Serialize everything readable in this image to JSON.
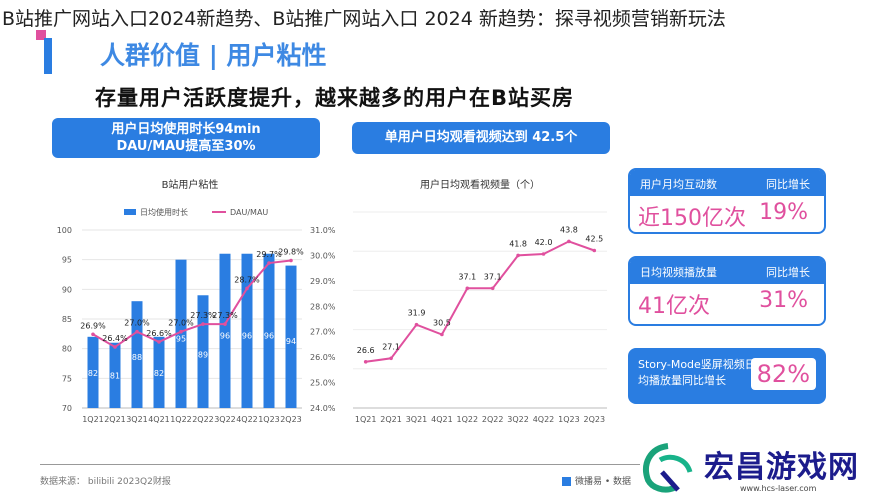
{
  "page_title": "B站推广网站入口2024新趋势、B站推广网站入口 2024 新趋势：探寻视频营销新玩法",
  "section_heading": "人群价值 | 用户粘性",
  "headline": "存量用户活跃度提升，越来越多的用户在B站买房",
  "banner1": {
    "line1": "用户日均使用时长94min",
    "line2": "DAU/MAU提高至30%"
  },
  "banner2": {
    "text": "单用户日均观看视频达到 42.5个"
  },
  "cards": [
    {
      "label1": "用户月均互动数",
      "label2": "同比增长",
      "value1": "近150亿次",
      "value2": "19%"
    },
    {
      "label1": "日均视频播放量",
      "label2": "同比增长",
      "value1": "41亿次",
      "value2": "31%"
    }
  ],
  "card3": {
    "label": "Story-Mode竖屏视频日均播放量同比增长",
    "value": "82%"
  },
  "footer": {
    "source": "数据来源： bilibili  2023Q2财报",
    "legend": "微播易 • 数据"
  },
  "watermark": {
    "text": "宏昌游戏网",
    "url": "www.hcs-laser.com"
  },
  "colors": {
    "accent": "#2a7de1",
    "pink": "#e0509e"
  },
  "chart_data": [
    {
      "type": "bar",
      "title": "B站用户粘性",
      "categories": [
        "1Q21",
        "2Q21",
        "3Q21",
        "4Q21",
        "1Q22",
        "2Q22",
        "3Q22",
        "4Q22",
        "1Q23",
        "2Q23"
      ],
      "series": [
        {
          "name": "日均使用时长",
          "type": "bar",
          "axis": "left",
          "values": [
            82,
            81,
            88,
            82,
            95,
            89,
            96,
            96,
            96,
            94
          ]
        },
        {
          "name": "DAU/MAU",
          "type": "line",
          "axis": "right",
          "values": [
            26.9,
            26.4,
            27.0,
            26.6,
            27.0,
            27.3,
            27.3,
            28.7,
            29.7,
            29.8
          ],
          "labels": [
            "26.9%",
            "26.4%",
            "27.0%",
            "26.6%",
            "27.0%",
            "27.3%",
            "27.3%",
            "28.7%",
            "29.7%",
            "29.8%"
          ]
        }
      ],
      "ylim_left": [
        70,
        100
      ],
      "yticks_left": [
        "70",
        "75",
        "80",
        "85",
        "90",
        "95",
        "100"
      ],
      "ylim_right": [
        24.0,
        31.0
      ],
      "yticks_right": [
        "24.0%",
        "25.0%",
        "26.0%",
        "27.0%",
        "28.0%",
        "29.0%",
        "30.0%",
        "31.0%"
      ],
      "legend": "top"
    },
    {
      "type": "line",
      "title": "用户日均观看视频量（个）",
      "categories": [
        "1Q21",
        "2Q21",
        "3Q21",
        "4Q21",
        "1Q22",
        "2Q22",
        "3Q22",
        "4Q22",
        "1Q23",
        "2Q23"
      ],
      "values": [
        26.6,
        27.1,
        31.9,
        30.5,
        37.1,
        37.1,
        41.8,
        42.0,
        43.8,
        42.5
      ],
      "labels": [
        "26.6",
        "27.1",
        "31.9",
        "30.5",
        "37.1",
        "37.1",
        "41.8",
        "42.0",
        "43.8",
        "42.5"
      ],
      "ylim": [
        20,
        48
      ]
    }
  ]
}
